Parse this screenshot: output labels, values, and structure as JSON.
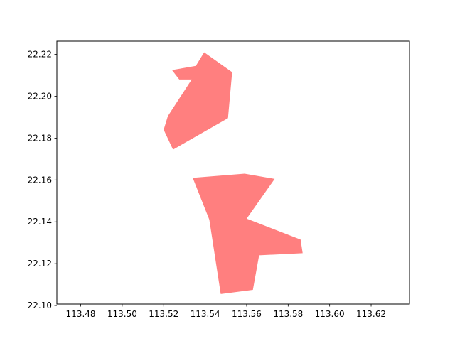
{
  "chart_data": {
    "type": "area",
    "title": "",
    "xlabel": "",
    "ylabel": "",
    "xlim": [
      113.4685,
      113.6385
    ],
    "ylim": [
      22.1007,
      22.2263
    ],
    "grid": false,
    "x_ticks": [
      113.48,
      113.5,
      113.52,
      113.54,
      113.56,
      113.58,
      113.6,
      113.62
    ],
    "y_ticks": [
      22.1,
      22.12,
      22.14,
      22.16,
      22.18,
      22.2,
      22.22
    ],
    "x_tick_labels": [
      "113.48",
      "113.50",
      "113.52",
      "113.54",
      "113.56",
      "113.58",
      "113.60",
      "113.62"
    ],
    "y_tick_labels": [
      "22.10",
      "22.12",
      "22.14",
      "22.16",
      "22.18",
      "22.20",
      "22.22"
    ],
    "fill_color": "#ff7f7f",
    "polygons": [
      {
        "points": [
          [
            113.5395,
            22.221
          ],
          [
            113.553,
            22.2115
          ],
          [
            113.551,
            22.1895
          ],
          [
            113.5245,
            22.1745
          ],
          [
            113.52,
            22.184
          ],
          [
            113.522,
            22.1905
          ],
          [
            113.5335,
            22.208
          ],
          [
            113.5275,
            22.208
          ],
          [
            113.524,
            22.2125
          ],
          [
            113.5355,
            22.2145
          ]
        ]
      },
      {
        "points": [
          [
            113.534,
            22.161
          ],
          [
            113.559,
            22.163
          ],
          [
            113.5735,
            22.1605
          ],
          [
            113.56,
            22.1415
          ],
          [
            113.586,
            22.1315
          ],
          [
            113.587,
            22.125
          ],
          [
            113.566,
            22.124
          ],
          [
            113.563,
            22.1075
          ],
          [
            113.5475,
            22.1055
          ],
          [
            113.542,
            22.141
          ]
        ]
      }
    ]
  }
}
